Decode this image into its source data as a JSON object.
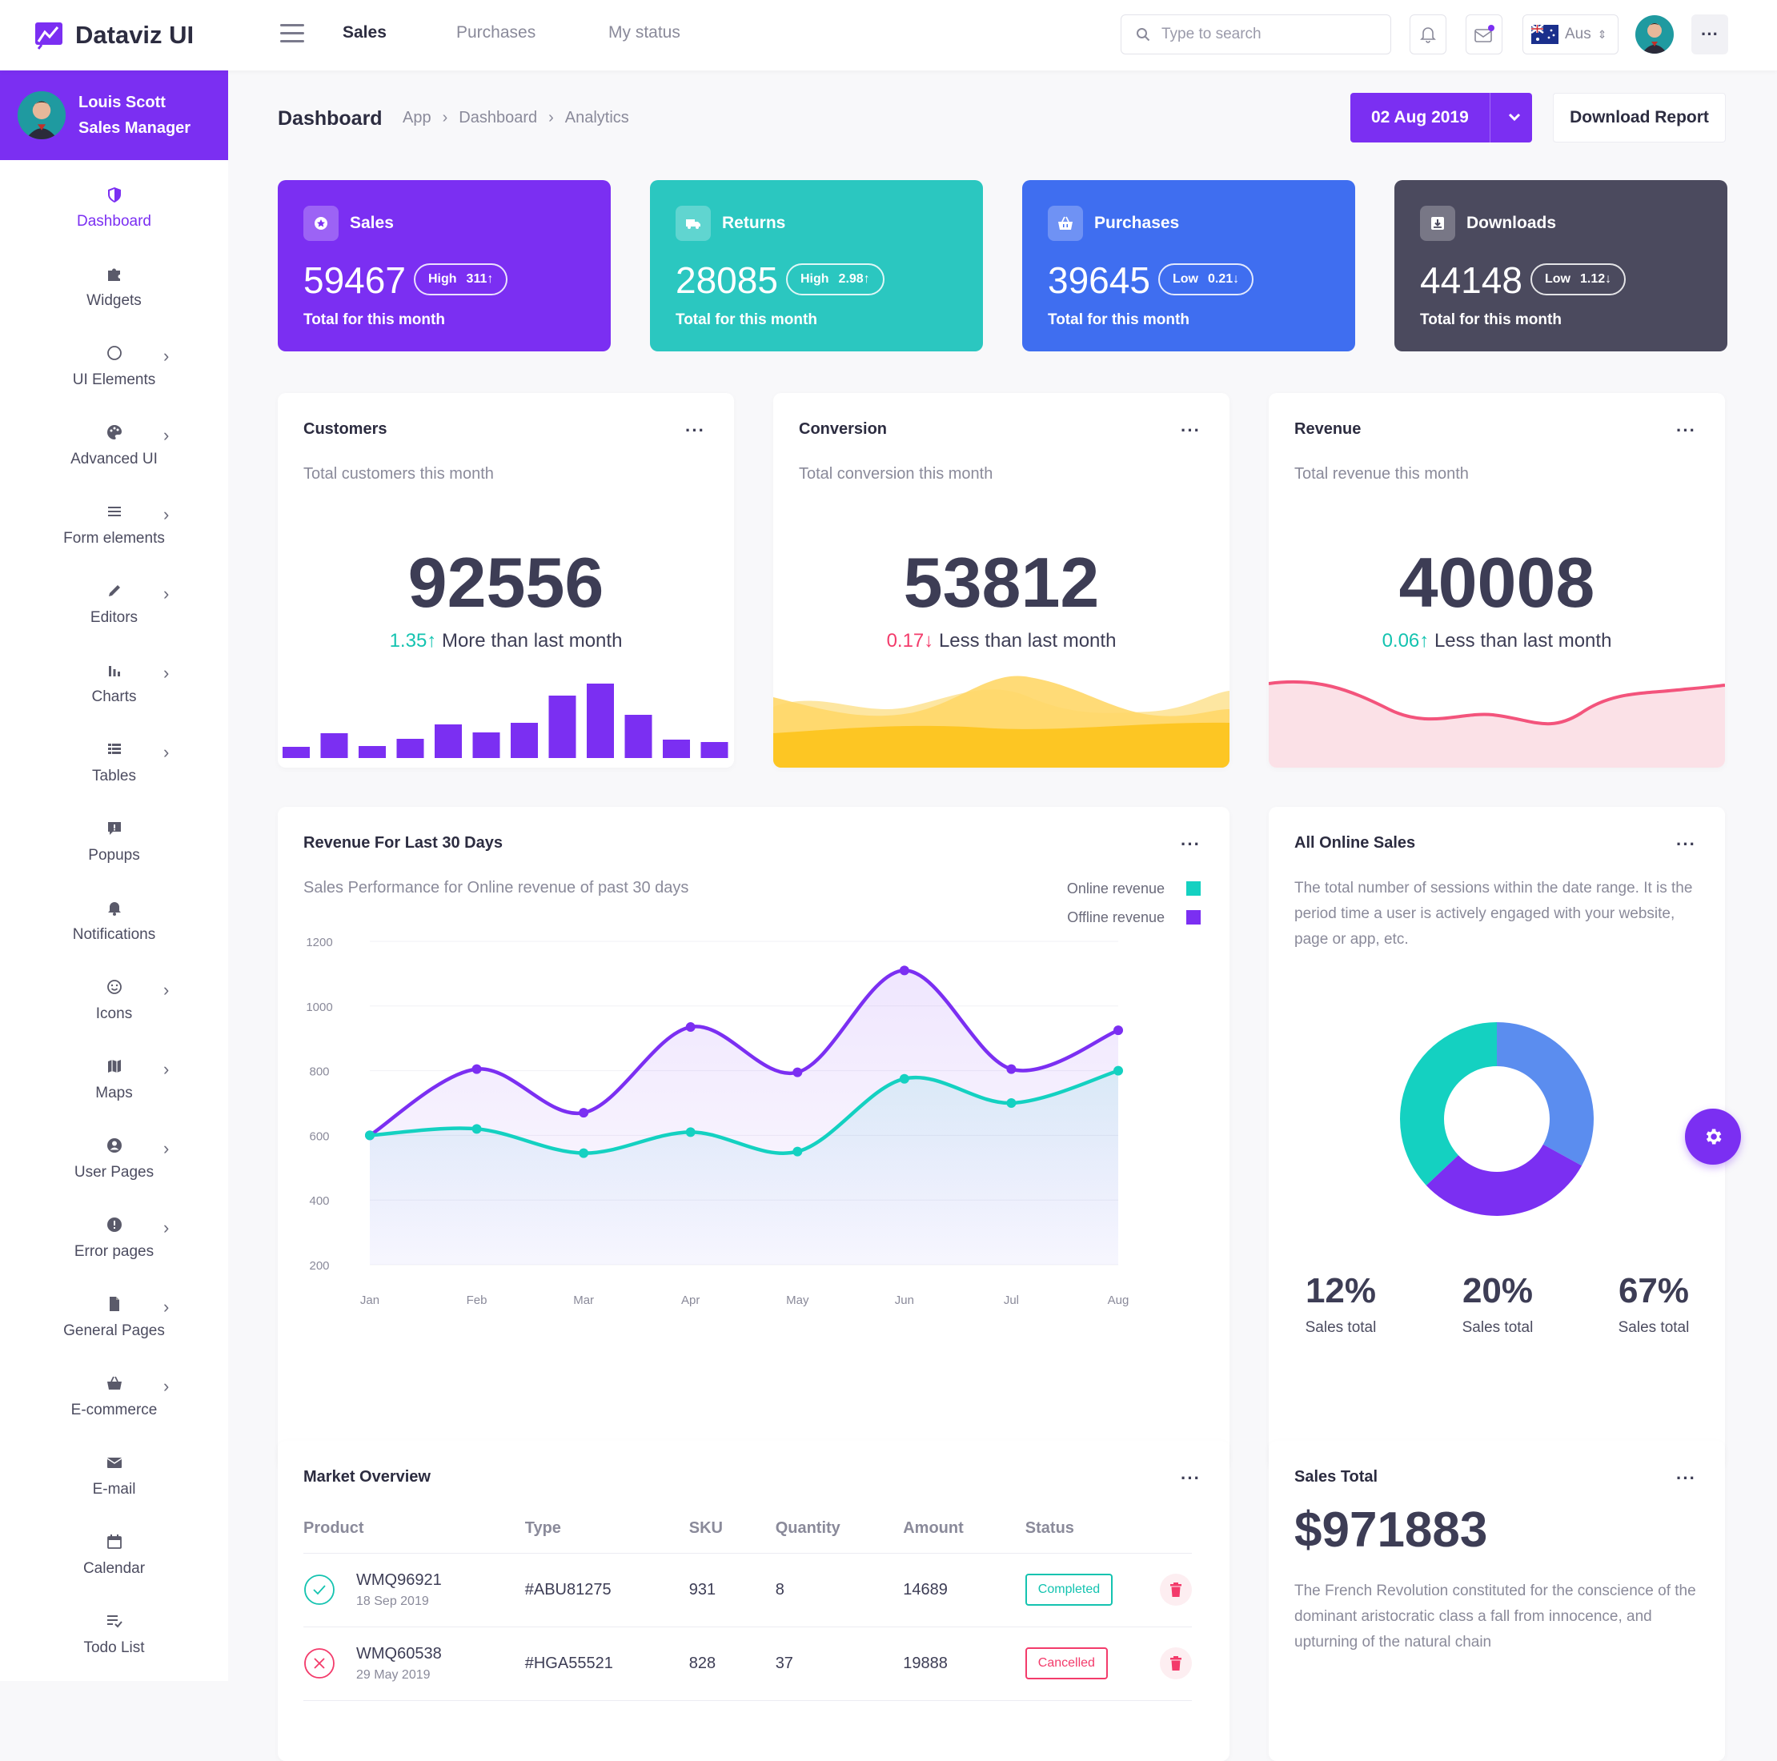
{
  "app": {
    "name": "Dataviz UI"
  },
  "topnav": {
    "items": [
      "Sales",
      "Purchases",
      "My status"
    ],
    "active": "Sales"
  },
  "search": {
    "placeholder": "Type to search"
  },
  "lang": {
    "label": "Aus"
  },
  "user": {
    "name": "Louis Scott",
    "role": "Sales Manager"
  },
  "sidebar": {
    "items": [
      {
        "label": "Dashboard",
        "icon": "shield-icon",
        "chevron": false
      },
      {
        "label": "Widgets",
        "icon": "puzzle-icon",
        "chevron": false
      },
      {
        "label": "UI Elements",
        "icon": "circle-icon",
        "chevron": true
      },
      {
        "label": "Advanced UI",
        "icon": "palette-icon",
        "chevron": true
      },
      {
        "label": "Form elements",
        "icon": "list-icon",
        "chevron": true
      },
      {
        "label": "Editors",
        "icon": "pencil-icon",
        "chevron": true
      },
      {
        "label": "Charts",
        "icon": "bar-chart-icon",
        "chevron": true
      },
      {
        "label": "Tables",
        "icon": "table-icon",
        "chevron": true
      },
      {
        "label": "Popups",
        "icon": "comment-icon",
        "chevron": false
      },
      {
        "label": "Notifications",
        "icon": "bell-icon",
        "chevron": false
      },
      {
        "label": "Icons",
        "icon": "smile-icon",
        "chevron": true
      },
      {
        "label": "Maps",
        "icon": "map-icon",
        "chevron": true
      },
      {
        "label": "User Pages",
        "icon": "user-icon",
        "chevron": true
      },
      {
        "label": "Error pages",
        "icon": "alert-icon",
        "chevron": true
      },
      {
        "label": "General Pages",
        "icon": "file-icon",
        "chevron": true
      },
      {
        "label": "E-commerce",
        "icon": "basket-icon",
        "chevron": true
      },
      {
        "label": "E-mail",
        "icon": "envelope-icon",
        "chevron": false
      },
      {
        "label": "Calendar",
        "icon": "calendar-icon",
        "chevron": false
      },
      {
        "label": "Todo List",
        "icon": "todo-icon",
        "chevron": false
      }
    ]
  },
  "header": {
    "title": "Dashboard",
    "breadcrumb": [
      "App",
      "Dashboard",
      "Analytics"
    ],
    "date": "02 Aug 2019",
    "download": "Download Report"
  },
  "stats": [
    {
      "title": "Sales",
      "value": "59467",
      "level": "High",
      "change": "311",
      "dir": "↑",
      "sub": "Total for this month",
      "color": "#7b2ff2"
    },
    {
      "title": "Returns",
      "value": "28085",
      "level": "High",
      "change": "2.98",
      "dir": "↑",
      "sub": "Total for this month",
      "color": "#2bc7c0"
    },
    {
      "title": "Purchases",
      "value": "39645",
      "level": "Low",
      "change": "0.21",
      "dir": "↓",
      "sub": "Total for this month",
      "color": "#3f6ef0"
    },
    {
      "title": "Downloads",
      "value": "44148",
      "level": "Low",
      "change": "1.12",
      "dir": "↓",
      "sub": "Total for this month",
      "color": "#4b4a5e"
    }
  ],
  "kpis": [
    {
      "title": "Customers",
      "sub": "Total customers this month",
      "value": "92556",
      "delta": "1.35",
      "dir": "↑",
      "text": "More than last month"
    },
    {
      "title": "Conversion",
      "sub": "Total conversion this month",
      "value": "53812",
      "delta": "0.17",
      "dir": "↓",
      "text": "Less than last month"
    },
    {
      "title": "Revenue",
      "sub": "Total revenue this month",
      "value": "40008",
      "delta": "0.06",
      "dir": "↑",
      "text": "Less than last month"
    }
  ],
  "customers_bars": [
    14,
    31,
    15,
    24,
    42,
    32,
    44,
    78,
    93,
    54,
    23,
    20
  ],
  "revenue_chart": {
    "title": "Revenue For Last 30 Days",
    "subtitle": "Sales Performance for Online revenue of past 30 days",
    "legend": [
      "Online revenue",
      "Offline revenue"
    ]
  },
  "chart_data": {
    "type": "line",
    "title": "Revenue For Last 30 Days",
    "x": [
      "Jan",
      "Feb",
      "Mar",
      "Apr",
      "May",
      "Jun",
      "Jul",
      "Aug"
    ],
    "series": [
      {
        "name": "Online revenue",
        "color": "#14d1c1",
        "values": [
          600,
          620,
          545,
          610,
          550,
          775,
          700,
          800
        ]
      },
      {
        "name": "Offline revenue",
        "color": "#7b2ff2",
        "values": [
          600,
          805,
          670,
          935,
          795,
          1110,
          805,
          925
        ]
      }
    ],
    "yticks": [
      200,
      400,
      600,
      800,
      1000,
      1200
    ],
    "ylim": [
      200,
      1200
    ]
  },
  "online_sales": {
    "title": "All Online Sales",
    "desc": "The total number of sessions within the date range. It is the period time a user is actively engaged with your website, page or app, etc.",
    "donut": [
      {
        "value": 33,
        "color": "#5b8def"
      },
      {
        "value": 30,
        "color": "#7b2ff2"
      },
      {
        "value": 37,
        "color": "#14d1c1"
      }
    ],
    "stats": [
      {
        "value": "12%",
        "label": "Sales total"
      },
      {
        "value": "20%",
        "label": "Sales total"
      },
      {
        "value": "67%",
        "label": "Sales total"
      }
    ]
  },
  "market": {
    "title": "Market Overview",
    "columns": [
      "Product",
      "Type",
      "SKU",
      "Quantity",
      "Amount",
      "Status"
    ],
    "rows": [
      {
        "product": "WMQ96921",
        "date": "18 Sep 2019",
        "type": "#ABU81275",
        "sku": "931",
        "qty": "8",
        "amount": "14689",
        "status": "Completed"
      },
      {
        "product": "WMQ60538",
        "date": "29 May 2019",
        "type": "#HGA55521",
        "sku": "828",
        "qty": "37",
        "amount": "19888",
        "status": "Cancelled"
      }
    ]
  },
  "sales_total": {
    "title": "Sales Total",
    "value": "$971883",
    "desc": "The French Revolution constituted for the conscience of the dominant aristocratic class a fall from innocence, and upturning of the natural chain"
  }
}
